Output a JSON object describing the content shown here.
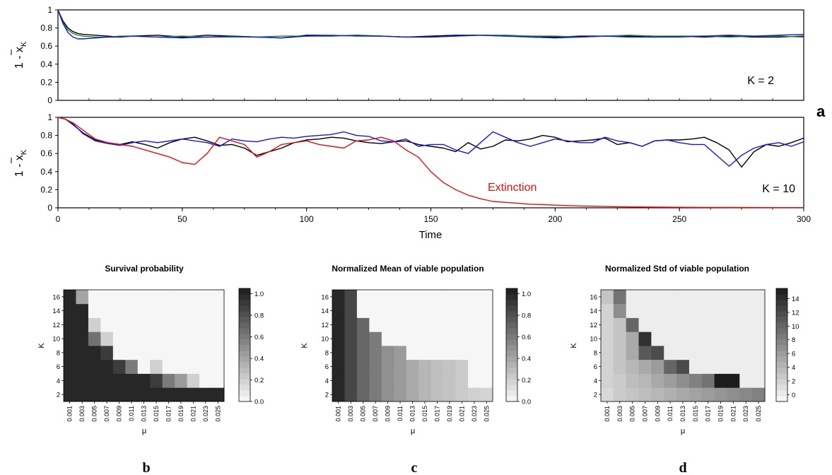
{
  "colors": {
    "black": "#000000",
    "green": "#1a8a1a",
    "blue": "#1515e6",
    "red": "#e41010"
  },
  "panel_letters": {
    "a": "a",
    "b": "b",
    "c": "c",
    "d": "d"
  },
  "chart_data": [
    {
      "type": "line",
      "panel": "a-top",
      "ylabel_main": "1 - x",
      "ylabel_sub": "K",
      "annotation": "K = 2",
      "xlim": [
        0,
        300
      ],
      "ylim": [
        0,
        1
      ],
      "yticks": [
        "0",
        "0.2",
        "0.4",
        "0.6",
        "0.8",
        "1"
      ],
      "grid": false,
      "series": [
        {
          "color": "black",
          "x": [
            0,
            2,
            4,
            6,
            8,
            10,
            15,
            20,
            25,
            30,
            40,
            50,
            60,
            70,
            80,
            90,
            100,
            110,
            120,
            130,
            140,
            150,
            160,
            170,
            180,
            190,
            200,
            210,
            220,
            230,
            240,
            250,
            260,
            270,
            280,
            290,
            300
          ],
          "y": [
            1.0,
            0.88,
            0.8,
            0.76,
            0.74,
            0.73,
            0.72,
            0.71,
            0.7,
            0.71,
            0.72,
            0.7,
            0.72,
            0.71,
            0.7,
            0.69,
            0.72,
            0.72,
            0.71,
            0.71,
            0.7,
            0.71,
            0.72,
            0.72,
            0.71,
            0.71,
            0.7,
            0.71,
            0.71,
            0.71,
            0.7,
            0.71,
            0.7,
            0.71,
            0.7,
            0.7,
            0.71
          ]
        },
        {
          "color": "green",
          "x": [
            0,
            2,
            4,
            6,
            8,
            10,
            15,
            20,
            25,
            30,
            40,
            50,
            60,
            70,
            80,
            90,
            100,
            110,
            120,
            130,
            140,
            150,
            160,
            170,
            180,
            190,
            200,
            210,
            220,
            230,
            240,
            250,
            260,
            270,
            280,
            290,
            300
          ],
          "y": [
            1.0,
            0.86,
            0.78,
            0.74,
            0.72,
            0.71,
            0.7,
            0.7,
            0.71,
            0.71,
            0.7,
            0.71,
            0.7,
            0.7,
            0.7,
            0.71,
            0.71,
            0.72,
            0.71,
            0.71,
            0.7,
            0.7,
            0.71,
            0.72,
            0.72,
            0.71,
            0.71,
            0.7,
            0.71,
            0.72,
            0.71,
            0.71,
            0.71,
            0.7,
            0.71,
            0.71,
            0.7
          ]
        },
        {
          "color": "blue",
          "x": [
            0,
            2,
            4,
            6,
            8,
            10,
            15,
            20,
            25,
            30,
            40,
            50,
            60,
            70,
            80,
            90,
            100,
            110,
            120,
            130,
            140,
            150,
            160,
            170,
            180,
            190,
            200,
            210,
            220,
            230,
            240,
            250,
            260,
            270,
            280,
            290,
            300
          ],
          "y": [
            1.0,
            0.85,
            0.75,
            0.7,
            0.68,
            0.68,
            0.69,
            0.7,
            0.7,
            0.71,
            0.7,
            0.69,
            0.7,
            0.71,
            0.7,
            0.69,
            0.71,
            0.71,
            0.72,
            0.71,
            0.7,
            0.7,
            0.71,
            0.72,
            0.71,
            0.7,
            0.69,
            0.7,
            0.71,
            0.7,
            0.7,
            0.7,
            0.71,
            0.72,
            0.71,
            0.72,
            0.73
          ]
        }
      ]
    },
    {
      "type": "line",
      "panel": "a-bottom",
      "ylabel_main": "1 - x",
      "ylabel_sub": "K",
      "xlabel": "Time",
      "annotation": "K = 10",
      "extinction_label": "Extinction",
      "xlim": [
        0,
        300
      ],
      "ylim": [
        0,
        1
      ],
      "xticks": [
        "0",
        "50",
        "100",
        "150",
        "200",
        "250",
        "300"
      ],
      "yticks": [
        "0",
        "0.2",
        "0.4",
        "0.6",
        "0.8",
        "1"
      ],
      "grid": false,
      "series": [
        {
          "color": "black",
          "x": [
            0,
            3,
            6,
            10,
            15,
            20,
            25,
            30,
            35,
            40,
            45,
            50,
            55,
            60,
            65,
            70,
            75,
            80,
            85,
            90,
            95,
            100,
            105,
            110,
            115,
            120,
            125,
            130,
            135,
            140,
            145,
            150,
            155,
            160,
            165,
            170,
            175,
            180,
            185,
            190,
            195,
            200,
            205,
            210,
            215,
            220,
            225,
            230,
            235,
            240,
            245,
            250,
            255,
            260,
            265,
            270,
            275,
            280,
            285,
            290,
            295,
            300
          ],
          "y": [
            1.0,
            0.98,
            0.92,
            0.83,
            0.75,
            0.72,
            0.7,
            0.73,
            0.7,
            0.66,
            0.72,
            0.76,
            0.78,
            0.74,
            0.69,
            0.7,
            0.66,
            0.58,
            0.62,
            0.66,
            0.72,
            0.75,
            0.76,
            0.78,
            0.77,
            0.74,
            0.72,
            0.71,
            0.73,
            0.74,
            0.7,
            0.68,
            0.66,
            0.62,
            0.72,
            0.65,
            0.68,
            0.75,
            0.74,
            0.76,
            0.8,
            0.78,
            0.73,
            0.74,
            0.75,
            0.77,
            0.7,
            0.72,
            0.68,
            0.74,
            0.75,
            0.75,
            0.76,
            0.78,
            0.72,
            0.64,
            0.45,
            0.62,
            0.7,
            0.68,
            0.72,
            0.77
          ]
        },
        {
          "color": "blue",
          "x": [
            0,
            3,
            6,
            10,
            15,
            20,
            25,
            30,
            35,
            40,
            45,
            50,
            55,
            60,
            65,
            70,
            75,
            80,
            85,
            90,
            95,
            100,
            105,
            110,
            115,
            120,
            125,
            130,
            135,
            140,
            145,
            150,
            155,
            160,
            165,
            170,
            175,
            180,
            185,
            190,
            195,
            200,
            205,
            210,
            215,
            220,
            225,
            230,
            235,
            240,
            245,
            250,
            255,
            260,
            265,
            270,
            275,
            280,
            285,
            290,
            295,
            300
          ],
          "y": [
            1.0,
            0.98,
            0.93,
            0.82,
            0.74,
            0.71,
            0.69,
            0.72,
            0.74,
            0.72,
            0.74,
            0.76,
            0.74,
            0.72,
            0.68,
            0.76,
            0.74,
            0.73,
            0.76,
            0.78,
            0.77,
            0.79,
            0.8,
            0.81,
            0.84,
            0.8,
            0.79,
            0.74,
            0.73,
            0.76,
            0.68,
            0.7,
            0.7,
            0.64,
            0.6,
            0.72,
            0.84,
            0.78,
            0.72,
            0.68,
            0.72,
            0.76,
            0.74,
            0.72,
            0.72,
            0.78,
            0.74,
            0.72,
            0.68,
            0.74,
            0.75,
            0.72,
            0.7,
            0.7,
            0.58,
            0.46,
            0.58,
            0.66,
            0.7,
            0.72,
            0.68,
            0.73
          ]
        },
        {
          "color": "red",
          "x": [
            0,
            3,
            6,
            10,
            15,
            20,
            25,
            30,
            35,
            40,
            45,
            50,
            55,
            60,
            65,
            70,
            75,
            80,
            85,
            90,
            95,
            100,
            105,
            110,
            115,
            120,
            125,
            130,
            135,
            140,
            145,
            150,
            155,
            160,
            165,
            170,
            175,
            180,
            185,
            190,
            195,
            200,
            210,
            220,
            230,
            240,
            250,
            260,
            270,
            280,
            290,
            300
          ],
          "y": [
            1.0,
            0.98,
            0.94,
            0.86,
            0.76,
            0.72,
            0.7,
            0.68,
            0.64,
            0.6,
            0.56,
            0.5,
            0.48,
            0.6,
            0.78,
            0.74,
            0.7,
            0.56,
            0.62,
            0.7,
            0.72,
            0.74,
            0.7,
            0.68,
            0.66,
            0.74,
            0.75,
            0.78,
            0.74,
            0.64,
            0.56,
            0.4,
            0.28,
            0.2,
            0.14,
            0.1,
            0.07,
            0.06,
            0.05,
            0.04,
            0.035,
            0.03,
            0.02,
            0.015,
            0.01,
            0.008,
            0.006,
            0.005,
            0.004,
            0.003,
            0.002,
            0.002
          ]
        }
      ]
    },
    {
      "type": "heatmap",
      "panel": "b",
      "title": "Survival probability",
      "xlabel": "μ",
      "ylabel": "K",
      "x_categories": [
        "0.001",
        "0.003",
        "0.005",
        "0.007",
        "0.009",
        "0.011",
        "0.013",
        "0.015",
        "0.017",
        "0.019",
        "0.021",
        "0.023",
        "0.025"
      ],
      "y_categories": [
        "2",
        "4",
        "6",
        "8",
        "10",
        "12",
        "14",
        "16"
      ],
      "colorbar_ticks": [
        "0.0",
        "0.2",
        "0.4",
        "0.6",
        "0.8",
        "1.0"
      ],
      "colorbar_range": [
        0,
        1.05
      ],
      "values": [
        [
          1,
          1,
          1,
          1,
          1,
          1,
          1,
          1,
          1,
          1,
          1,
          1,
          1
        ],
        [
          1,
          1,
          1,
          1,
          1,
          1,
          1,
          0.9,
          0.6,
          0.45,
          0.2,
          0.02,
          0.02
        ],
        [
          1,
          1,
          1,
          1,
          0.9,
          0.6,
          0.02,
          0.2,
          0.02,
          0.02,
          0.02,
          0.02,
          0.02
        ],
        [
          1,
          1,
          1,
          0.9,
          0.02,
          0.02,
          0.02,
          0.02,
          0.02,
          0.02,
          0.02,
          0.02,
          0.02
        ],
        [
          1,
          1,
          0.65,
          0.2,
          0.02,
          0.02,
          0.02,
          0.02,
          0.02,
          0.02,
          0.02,
          0.02,
          0.02
        ],
        [
          1,
          1,
          0.2,
          0.02,
          0.02,
          0.02,
          0.02,
          0.02,
          0.02,
          0.02,
          0.02,
          0.02,
          0.02
        ],
        [
          1,
          1,
          0.02,
          0.02,
          0.02,
          0.02,
          0.02,
          0.02,
          0.02,
          0.02,
          0.02,
          0.02,
          0.02
        ],
        [
          1,
          0.4,
          0.02,
          0.02,
          0.02,
          0.02,
          0.02,
          0.02,
          0.02,
          0.02,
          0.02,
          0.02,
          0.02
        ]
      ]
    },
    {
      "type": "heatmap",
      "panel": "c",
      "title": "Normalized Mean of viable population",
      "xlabel": "μ",
      "ylabel": "K",
      "x_categories": [
        "0.001",
        "0.003",
        "0.005",
        "0.007",
        "0.009",
        "0.011",
        "0.013",
        "0.015",
        "0.017",
        "0.019",
        "0.021",
        "0.023",
        "0.025"
      ],
      "y_categories": [
        "2",
        "4",
        "6",
        "8",
        "10",
        "12",
        "14",
        "16"
      ],
      "colorbar_ticks": [
        "0.0",
        "0.2",
        "0.4",
        "0.6",
        "0.8",
        "1.0"
      ],
      "colorbar_range": [
        0,
        1.05
      ],
      "values": [
        [
          1.0,
          0.85,
          0.7,
          0.6,
          0.5,
          0.45,
          0.38,
          0.32,
          0.28,
          0.26,
          0.22,
          0.2,
          0.18
        ],
        [
          1.0,
          0.85,
          0.7,
          0.6,
          0.5,
          0.45,
          0.38,
          0.32,
          0.28,
          0.26,
          0.22,
          0.02,
          0.02
        ],
        [
          1.0,
          0.85,
          0.7,
          0.6,
          0.5,
          0.45,
          0.38,
          0.32,
          0.28,
          0.26,
          0.22,
          0.02,
          0.02
        ],
        [
          1.0,
          0.85,
          0.7,
          0.6,
          0.5,
          0.45,
          0.02,
          0.02,
          0.02,
          0.02,
          0.02,
          0.02,
          0.02
        ],
        [
          1.0,
          0.85,
          0.7,
          0.6,
          0.02,
          0.02,
          0.02,
          0.02,
          0.02,
          0.02,
          0.02,
          0.02,
          0.02
        ],
        [
          1.0,
          0.85,
          0.7,
          0.02,
          0.02,
          0.02,
          0.02,
          0.02,
          0.02,
          0.02,
          0.02,
          0.02,
          0.02
        ],
        [
          1.0,
          0.85,
          0.02,
          0.02,
          0.02,
          0.02,
          0.02,
          0.02,
          0.02,
          0.02,
          0.02,
          0.02,
          0.02
        ],
        [
          1.0,
          0.85,
          0.02,
          0.02,
          0.02,
          0.02,
          0.02,
          0.02,
          0.02,
          0.02,
          0.02,
          0.02,
          0.02
        ]
      ]
    },
    {
      "type": "heatmap",
      "panel": "d",
      "title": "Normalized Std of viable population",
      "xlabel": "μ",
      "ylabel": "K",
      "x_categories": [
        "0.001",
        "0.003",
        "0.005",
        "0.007",
        "0.009",
        "0.011",
        "0.013",
        "0.015",
        "0.017",
        "0.019",
        "0.021",
        "0.023",
        "0.025"
      ],
      "y_categories": [
        "2",
        "4",
        "6",
        "8",
        "10",
        "12",
        "14",
        "16"
      ],
      "colorbar_ticks": [
        "0",
        "2",
        "4",
        "6",
        "8",
        "10",
        "12",
        "14"
      ],
      "colorbar_range": [
        -1,
        15.5
      ],
      "values": [
        [
          1.5,
          2.5,
          3,
          3.5,
          4,
          4.5,
          5,
          5.5,
          6,
          6.5,
          7,
          7.5,
          8
        ],
        [
          2,
          2.5,
          3.5,
          4,
          5,
          6,
          7,
          8,
          9,
          10,
          10.5,
          0,
          0
        ],
        [
          2,
          3,
          4,
          5,
          6,
          10,
          12,
          0,
          0,
          0,
          0,
          0,
          0
        ],
        [
          2,
          3,
          5,
          11,
          12,
          0,
          0,
          0,
          0,
          0,
          0,
          0,
          0
        ],
        [
          2,
          3,
          5,
          14,
          0,
          0,
          0,
          0,
          0,
          0,
          0,
          0,
          0
        ],
        [
          2,
          3,
          10,
          0,
          0,
          0,
          0,
          0,
          0,
          0,
          0,
          0,
          0
        ],
        [
          2,
          7,
          0,
          0,
          0,
          0,
          0,
          0,
          0,
          0,
          0,
          0,
          0
        ],
        [
          3,
          9,
          0,
          0,
          0,
          0,
          0,
          0,
          0,
          0,
          0,
          0,
          0
        ]
      ],
      "cell_overrides": {
        "row1_col9": 15.5,
        "row1_col10": 15.5
      }
    }
  ]
}
